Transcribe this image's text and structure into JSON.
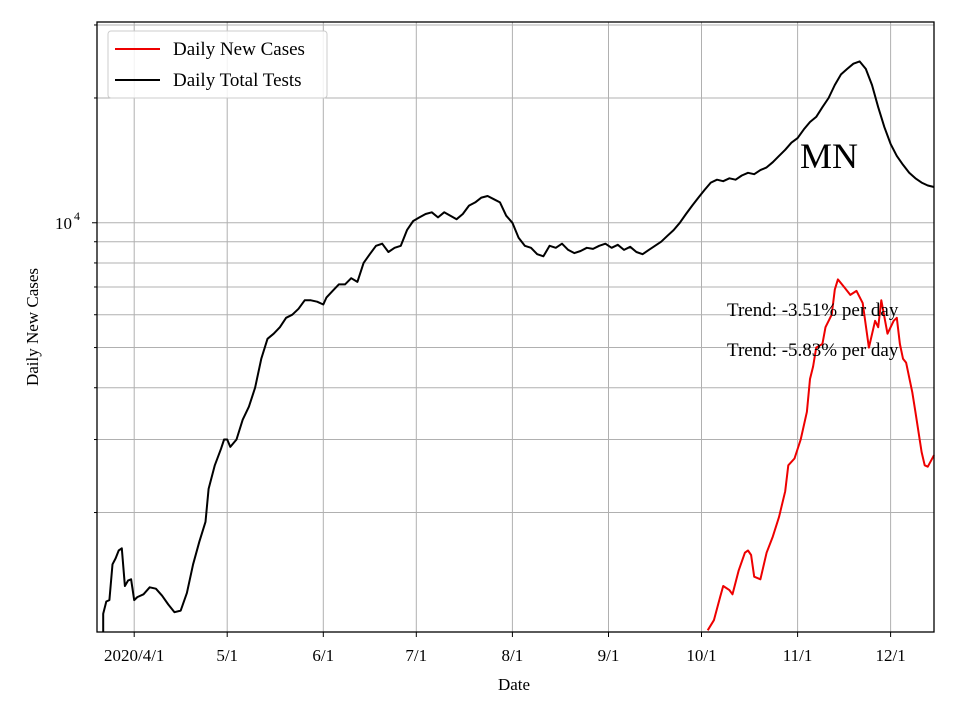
{
  "chart_data": {
    "type": "line",
    "title": "",
    "xlabel": "Date",
    "ylabel": "Daily New Cases",
    "yscale": "log",
    "ylim": [
      1030,
      30500
    ],
    "xlim": [
      "2020-03-20",
      "2020-12-15"
    ],
    "grid": true,
    "legend_position": "top-left",
    "annotation": "MN",
    "x_ticks": [
      {
        "date": "2020-04-01",
        "label": "2020/4/1"
      },
      {
        "date": "2020-05-01",
        "label": "5/1"
      },
      {
        "date": "2020-06-01",
        "label": "6/1"
      },
      {
        "date": "2020-07-01",
        "label": "7/1"
      },
      {
        "date": "2020-08-01",
        "label": "8/1"
      },
      {
        "date": "2020-09-01",
        "label": "9/1"
      },
      {
        "date": "2020-10-01",
        "label": "10/1"
      },
      {
        "date": "2020-11-01",
        "label": "11/1"
      },
      {
        "date": "2020-12-01",
        "label": "12/1"
      }
    ],
    "y_major_tick": {
      "value": 10000,
      "base": "10",
      "exponent": "4"
    },
    "y_minor_ticks": [
      2000,
      3000,
      4000,
      5000,
      6000,
      7000,
      8000,
      9000,
      20000,
      30000
    ],
    "trend_labels": [
      "Trend: -3.51% per day",
      "Trend: -5.83% per day"
    ],
    "series": [
      {
        "name": "Daily New Cases",
        "color": "#ee0000",
        "points": [
          [
            "2020-10-03",
            1040
          ],
          [
            "2020-10-05",
            1100
          ],
          [
            "2020-10-07",
            1250
          ],
          [
            "2020-10-08",
            1330
          ],
          [
            "2020-10-10",
            1300
          ],
          [
            "2020-10-11",
            1270
          ],
          [
            "2020-10-13",
            1450
          ],
          [
            "2020-10-15",
            1600
          ],
          [
            "2020-10-16",
            1620
          ],
          [
            "2020-10-17",
            1580
          ],
          [
            "2020-10-18",
            1400
          ],
          [
            "2020-10-20",
            1380
          ],
          [
            "2020-10-22",
            1600
          ],
          [
            "2020-10-24",
            1750
          ],
          [
            "2020-10-26",
            1950
          ],
          [
            "2020-10-28",
            2250
          ],
          [
            "2020-10-29",
            2600
          ],
          [
            "2020-10-31",
            2700
          ],
          [
            "2020-11-02",
            3000
          ],
          [
            "2020-11-04",
            3500
          ],
          [
            "2020-11-05",
            4200
          ],
          [
            "2020-11-06",
            4500
          ],
          [
            "2020-11-07",
            5000
          ],
          [
            "2020-11-09",
            5100
          ],
          [
            "2020-11-10",
            5600
          ],
          [
            "2020-11-12",
            6000
          ],
          [
            "2020-11-13",
            6900
          ],
          [
            "2020-11-14",
            7300
          ],
          [
            "2020-11-16",
            7000
          ],
          [
            "2020-11-18",
            6700
          ],
          [
            "2020-11-20",
            6850
          ],
          [
            "2020-11-22",
            6400
          ],
          [
            "2020-11-24",
            5000
          ],
          [
            "2020-11-26",
            5800
          ],
          [
            "2020-11-27",
            5600
          ],
          [
            "2020-11-28",
            6500
          ],
          [
            "2020-11-30",
            5400
          ],
          [
            "2020-12-02",
            5800
          ],
          [
            "2020-12-03",
            5900
          ],
          [
            "2020-12-04",
            5100
          ],
          [
            "2020-12-05",
            4700
          ],
          [
            "2020-12-06",
            4600
          ],
          [
            "2020-12-08",
            3900
          ],
          [
            "2020-12-09",
            3500
          ],
          [
            "2020-12-11",
            2800
          ],
          [
            "2020-12-12",
            2600
          ],
          [
            "2020-12-13",
            2580
          ],
          [
            "2020-12-15",
            2750
          ]
        ]
      },
      {
        "name": "Daily Total Tests",
        "color": "#000000",
        "points": [
          [
            "2020-03-22",
            1030
          ],
          [
            "2020-03-22",
            1140
          ],
          [
            "2020-03-23",
            1220
          ],
          [
            "2020-03-24",
            1230
          ],
          [
            "2020-03-25",
            1500
          ],
          [
            "2020-03-26",
            1550
          ],
          [
            "2020-03-27",
            1620
          ],
          [
            "2020-03-28",
            1640
          ],
          [
            "2020-03-29",
            1330
          ],
          [
            "2020-03-30",
            1370
          ],
          [
            "2020-03-31",
            1380
          ],
          [
            "2020-04-01",
            1230
          ],
          [
            "2020-04-02",
            1250
          ],
          [
            "2020-04-04",
            1270
          ],
          [
            "2020-04-06",
            1320
          ],
          [
            "2020-04-08",
            1310
          ],
          [
            "2020-04-10",
            1260
          ],
          [
            "2020-04-12",
            1200
          ],
          [
            "2020-04-14",
            1150
          ],
          [
            "2020-04-16",
            1160
          ],
          [
            "2020-04-18",
            1280
          ],
          [
            "2020-04-20",
            1500
          ],
          [
            "2020-04-22",
            1700
          ],
          [
            "2020-04-24",
            1900
          ],
          [
            "2020-04-25",
            2280
          ],
          [
            "2020-04-27",
            2600
          ],
          [
            "2020-04-29",
            2850
          ],
          [
            "2020-04-30",
            3000
          ],
          [
            "2020-05-01",
            3000
          ],
          [
            "2020-05-02",
            2880
          ],
          [
            "2020-05-04",
            3000
          ],
          [
            "2020-05-06",
            3350
          ],
          [
            "2020-05-08",
            3600
          ],
          [
            "2020-05-10",
            4000
          ],
          [
            "2020-05-12",
            4700
          ],
          [
            "2020-05-14",
            5250
          ],
          [
            "2020-05-16",
            5400
          ],
          [
            "2020-05-18",
            5600
          ],
          [
            "2020-05-20",
            5900
          ],
          [
            "2020-05-22",
            6000
          ],
          [
            "2020-05-24",
            6200
          ],
          [
            "2020-05-26",
            6500
          ],
          [
            "2020-05-28",
            6500
          ],
          [
            "2020-05-30",
            6450
          ],
          [
            "2020-06-01",
            6350
          ],
          [
            "2020-06-02",
            6600
          ],
          [
            "2020-06-04",
            6850
          ],
          [
            "2020-06-06",
            7100
          ],
          [
            "2020-06-08",
            7100
          ],
          [
            "2020-06-10",
            7350
          ],
          [
            "2020-06-12",
            7200
          ],
          [
            "2020-06-14",
            8000
          ],
          [
            "2020-06-16",
            8400
          ],
          [
            "2020-06-18",
            8800
          ],
          [
            "2020-06-20",
            8900
          ],
          [
            "2020-06-22",
            8500
          ],
          [
            "2020-06-24",
            8700
          ],
          [
            "2020-06-26",
            8800
          ],
          [
            "2020-06-28",
            9600
          ],
          [
            "2020-06-30",
            10100
          ],
          [
            "2020-07-02",
            10300
          ],
          [
            "2020-07-04",
            10500
          ],
          [
            "2020-07-06",
            10600
          ],
          [
            "2020-07-08",
            10300
          ],
          [
            "2020-07-10",
            10600
          ],
          [
            "2020-07-12",
            10400
          ],
          [
            "2020-07-14",
            10200
          ],
          [
            "2020-07-16",
            10500
          ],
          [
            "2020-07-18",
            11000
          ],
          [
            "2020-07-20",
            11200
          ],
          [
            "2020-07-22",
            11500
          ],
          [
            "2020-07-24",
            11600
          ],
          [
            "2020-07-26",
            11400
          ],
          [
            "2020-07-28",
            11200
          ],
          [
            "2020-07-30",
            10400
          ],
          [
            "2020-08-01",
            10000
          ],
          [
            "2020-08-03",
            9200
          ],
          [
            "2020-08-05",
            8800
          ],
          [
            "2020-08-07",
            8700
          ],
          [
            "2020-08-09",
            8400
          ],
          [
            "2020-08-11",
            8300
          ],
          [
            "2020-08-13",
            8800
          ],
          [
            "2020-08-15",
            8700
          ],
          [
            "2020-08-17",
            8900
          ],
          [
            "2020-08-19",
            8600
          ],
          [
            "2020-08-21",
            8450
          ],
          [
            "2020-08-23",
            8550
          ],
          [
            "2020-08-25",
            8700
          ],
          [
            "2020-08-27",
            8650
          ],
          [
            "2020-08-29",
            8800
          ],
          [
            "2020-08-31",
            8900
          ],
          [
            "2020-09-02",
            8700
          ],
          [
            "2020-09-04",
            8850
          ],
          [
            "2020-09-06",
            8600
          ],
          [
            "2020-09-08",
            8750
          ],
          [
            "2020-09-10",
            8500
          ],
          [
            "2020-09-12",
            8400
          ],
          [
            "2020-09-14",
            8600
          ],
          [
            "2020-09-16",
            8800
          ],
          [
            "2020-09-18",
            9000
          ],
          [
            "2020-09-20",
            9300
          ],
          [
            "2020-09-22",
            9600
          ],
          [
            "2020-09-24",
            10000
          ],
          [
            "2020-09-26",
            10500
          ],
          [
            "2020-09-28",
            11000
          ],
          [
            "2020-09-30",
            11500
          ],
          [
            "2020-10-02",
            12000
          ],
          [
            "2020-10-04",
            12500
          ],
          [
            "2020-10-06",
            12700
          ],
          [
            "2020-10-08",
            12600
          ],
          [
            "2020-10-10",
            12800
          ],
          [
            "2020-10-12",
            12700
          ],
          [
            "2020-10-14",
            13000
          ],
          [
            "2020-10-16",
            13200
          ],
          [
            "2020-10-18",
            13100
          ],
          [
            "2020-10-20",
            13400
          ],
          [
            "2020-10-22",
            13600
          ],
          [
            "2020-10-24",
            14000
          ],
          [
            "2020-10-26",
            14500
          ],
          [
            "2020-10-28",
            15000
          ],
          [
            "2020-10-30",
            15600
          ],
          [
            "2020-11-01",
            16000
          ],
          [
            "2020-11-03",
            16800
          ],
          [
            "2020-11-05",
            17500
          ],
          [
            "2020-11-07",
            18000
          ],
          [
            "2020-11-09",
            19000
          ],
          [
            "2020-11-11",
            20000
          ],
          [
            "2020-11-13",
            21500
          ],
          [
            "2020-11-15",
            22800
          ],
          [
            "2020-11-17",
            23500
          ],
          [
            "2020-11-19",
            24200
          ],
          [
            "2020-11-21",
            24500
          ],
          [
            "2020-11-23",
            23500
          ],
          [
            "2020-11-25",
            21500
          ],
          [
            "2020-11-27",
            19000
          ],
          [
            "2020-11-29",
            17000
          ],
          [
            "2020-12-01",
            15500
          ],
          [
            "2020-12-03",
            14500
          ],
          [
            "2020-12-05",
            13800
          ],
          [
            "2020-12-07",
            13200
          ],
          [
            "2020-12-09",
            12800
          ],
          [
            "2020-12-11",
            12500
          ],
          [
            "2020-12-13",
            12300
          ],
          [
            "2020-12-15",
            12200
          ]
        ]
      }
    ]
  }
}
